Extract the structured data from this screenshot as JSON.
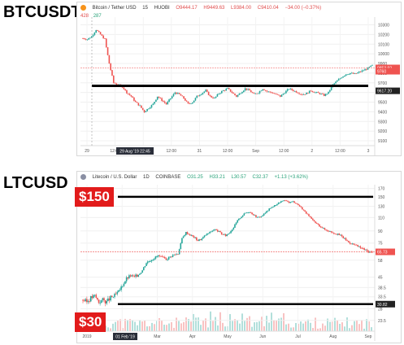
{
  "labels": {
    "top": "BTCUSDT",
    "bottom": "LTCUSD",
    "tag_high": "$150",
    "tag_low": "$30"
  },
  "chart_data": [
    {
      "type": "candlestick",
      "symbol_text": "Bitcoin / Tether USD",
      "interval": "15",
      "exchange": "HUOBI",
      "ohlc_text": [
        "O9444.17",
        "H9449.63",
        "L9384.00",
        "C9410.04",
        "−34.00 (−0.37%)"
      ],
      "bid_ask": [
        "428",
        "287"
      ],
      "y_ticks": [
        10300,
        10200,
        10100,
        10000,
        9900,
        9800,
        9700,
        9600,
        9500,
        9400,
        9300,
        9200,
        9100
      ],
      "ylim": [
        9050,
        10380
      ],
      "x_ticks": [
        "29",
        "12:00",
        "30",
        "12:00",
        "31",
        "12:00",
        "Sep",
        "12:00",
        "2",
        "12:00",
        "3"
      ],
      "crosshair_date": "29 Aug '19 22:45",
      "price_labels": [
        "9853.92",
        "9760",
        "9617.20"
      ],
      "support_line": 9669,
      "last_price": 9853.92,
      "path": [
        10160,
        10150,
        10180,
        10250,
        10200,
        10150,
        9900,
        9700,
        9680,
        9660,
        9600,
        9560,
        9500,
        9460,
        9400,
        9440,
        9480,
        9560,
        9520,
        9480,
        9540,
        9600,
        9580,
        9540,
        9480,
        9500,
        9560,
        9590,
        9620,
        9560,
        9540,
        9590,
        9620,
        9640,
        9600,
        9560,
        9600,
        9640,
        9620,
        9580,
        9600,
        9640,
        9610,
        9600,
        9580,
        9560,
        9600,
        9640,
        9620,
        9600,
        9580,
        9590,
        9620,
        9600,
        9590,
        9570,
        9600,
        9680,
        9720,
        9760,
        9790,
        9800,
        9790,
        9810,
        9830,
        9850,
        9880
      ]
    },
    {
      "type": "candlestick",
      "symbol_text": "Litecoin / U.S. Dollar",
      "interval": "1D",
      "exchange": "COINBASE",
      "ohlc_text": [
        "O31.25",
        "H33.21",
        "L30.57",
        "C32.37",
        "+1.13 (+3.62%)"
      ],
      "y_ticks": [
        170,
        150,
        130,
        110,
        90,
        75,
        58,
        45,
        38.5,
        33.5,
        28,
        23.5
      ],
      "x_ticks": [
        "2019",
        "Feb",
        "Mar",
        "Apr",
        "May",
        "Jun",
        "Jul",
        "Aug",
        "Sep"
      ],
      "crosshair_date": "01 Feb '19",
      "price_labels": [
        "65.73",
        "30.82"
      ],
      "resistance_line": 150,
      "support_line": 30,
      "last_price": 65.73,
      "path": [
        32,
        31,
        33,
        34,
        31,
        32,
        31,
        33,
        34,
        36,
        40,
        44,
        46,
        45,
        47,
        50,
        56,
        58,
        60,
        62,
        60,
        59,
        61,
        63,
        64,
        80,
        88,
        85,
        82,
        78,
        80,
        85,
        88,
        92,
        90,
        86,
        84,
        88,
        95,
        105,
        112,
        118,
        120,
        115,
        110,
        112,
        118,
        125,
        130,
        135,
        140,
        142,
        138,
        140,
        135,
        128,
        120,
        112,
        105,
        100,
        96,
        92,
        90,
        88,
        86,
        84,
        80,
        76,
        74,
        72,
        70,
        68,
        66,
        65
      ]
    }
  ]
}
